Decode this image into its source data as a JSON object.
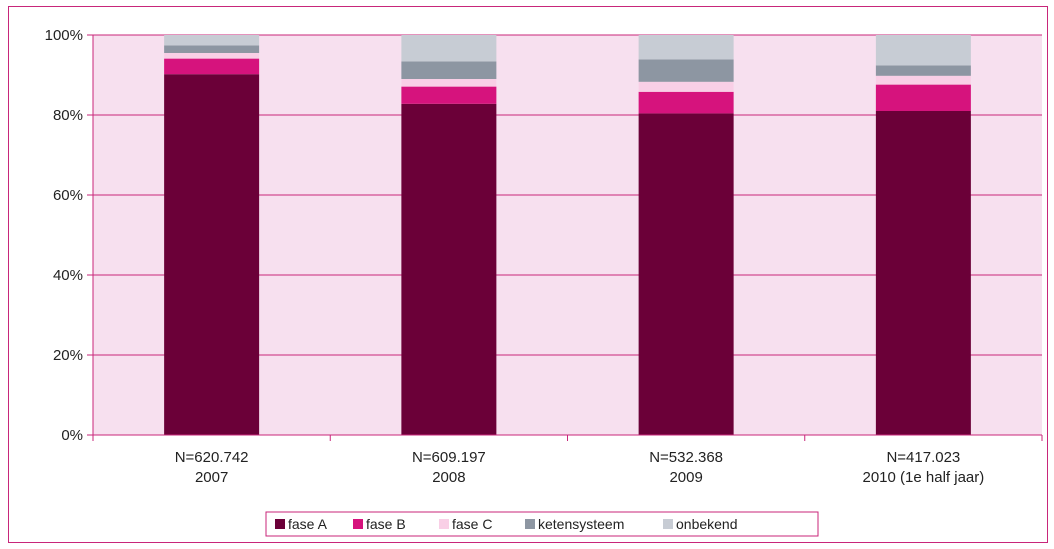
{
  "chart_data": {
    "type": "bar",
    "stacked": true,
    "title": "",
    "xlabel": "",
    "ylabel": "",
    "ylim": [
      0,
      100
    ],
    "yticks": [
      "0%",
      "20%",
      "40%",
      "60%",
      "80%",
      "100%"
    ],
    "yticks_values": [
      0,
      20,
      40,
      60,
      80,
      100
    ],
    "grid": true,
    "legend_position": "bottom",
    "categories": [
      {
        "n": "N=620.742",
        "year": "2007"
      },
      {
        "n": "N=609.197",
        "year": "2008"
      },
      {
        "n": "N=532.368",
        "year": "2009"
      },
      {
        "n": "N=417.023",
        "year": "2010 (1e half jaar)"
      }
    ],
    "series": [
      {
        "name": "fase A",
        "color": "#6b0038",
        "values": [
          90.2,
          82.8,
          80.4,
          81.0
        ]
      },
      {
        "name": "fase B",
        "color": "#d6137d",
        "values": [
          3.9,
          4.3,
          5.4,
          6.6
        ]
      },
      {
        "name": "fase C",
        "color": "#f9cfe6",
        "values": [
          1.4,
          1.9,
          2.5,
          2.2
        ]
      },
      {
        "name": "ketensysteem",
        "color": "#8d96a2",
        "values": [
          1.9,
          4.4,
          5.6,
          2.6
        ]
      },
      {
        "name": "onbekend",
        "color": "#c7ccd4",
        "values": [
          2.6,
          6.6,
          6.1,
          7.6
        ]
      }
    ],
    "colors": {
      "plot_background": "#f7e0ef",
      "gridline": "#c8267a",
      "frame": "#c8267a"
    }
  }
}
